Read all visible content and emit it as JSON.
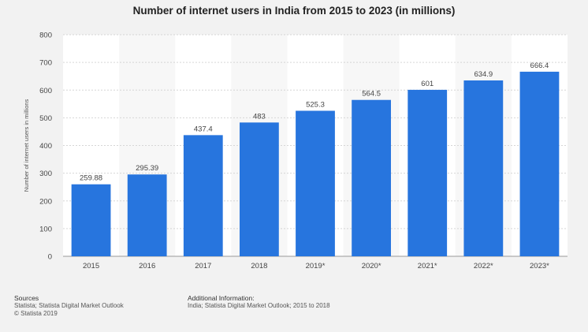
{
  "chart_data": {
    "type": "bar",
    "title": "Number of internet users in India from 2015 to 2023 (in millions)",
    "xlabel": "",
    "ylabel": "Number of internet users in millions",
    "ylim": [
      0,
      800
    ],
    "yticks": [
      0,
      100,
      200,
      300,
      400,
      500,
      600,
      700,
      800
    ],
    "categories": [
      "2015",
      "2016",
      "2017",
      "2018",
      "2019*",
      "2020*",
      "2021*",
      "2022*",
      "2023*"
    ],
    "values": [
      259.88,
      295.39,
      437.4,
      483,
      525.3,
      564.5,
      601,
      634.9,
      666.4
    ],
    "value_labels": [
      "259.88",
      "295.39",
      "437.4",
      "483",
      "525.3",
      "564.5",
      "601",
      "634.9",
      "666.4"
    ],
    "grid": true,
    "bar_color": "#2775de"
  },
  "footer": {
    "sources_heading": "Sources",
    "sources_lines": [
      "Statista; Statista Digital Market Outlook",
      "© Statista 2019"
    ],
    "additional_heading": "Additional Information:",
    "additional_lines": [
      "India; Statista Digital Market Outlook; 2015 to 2018"
    ]
  }
}
